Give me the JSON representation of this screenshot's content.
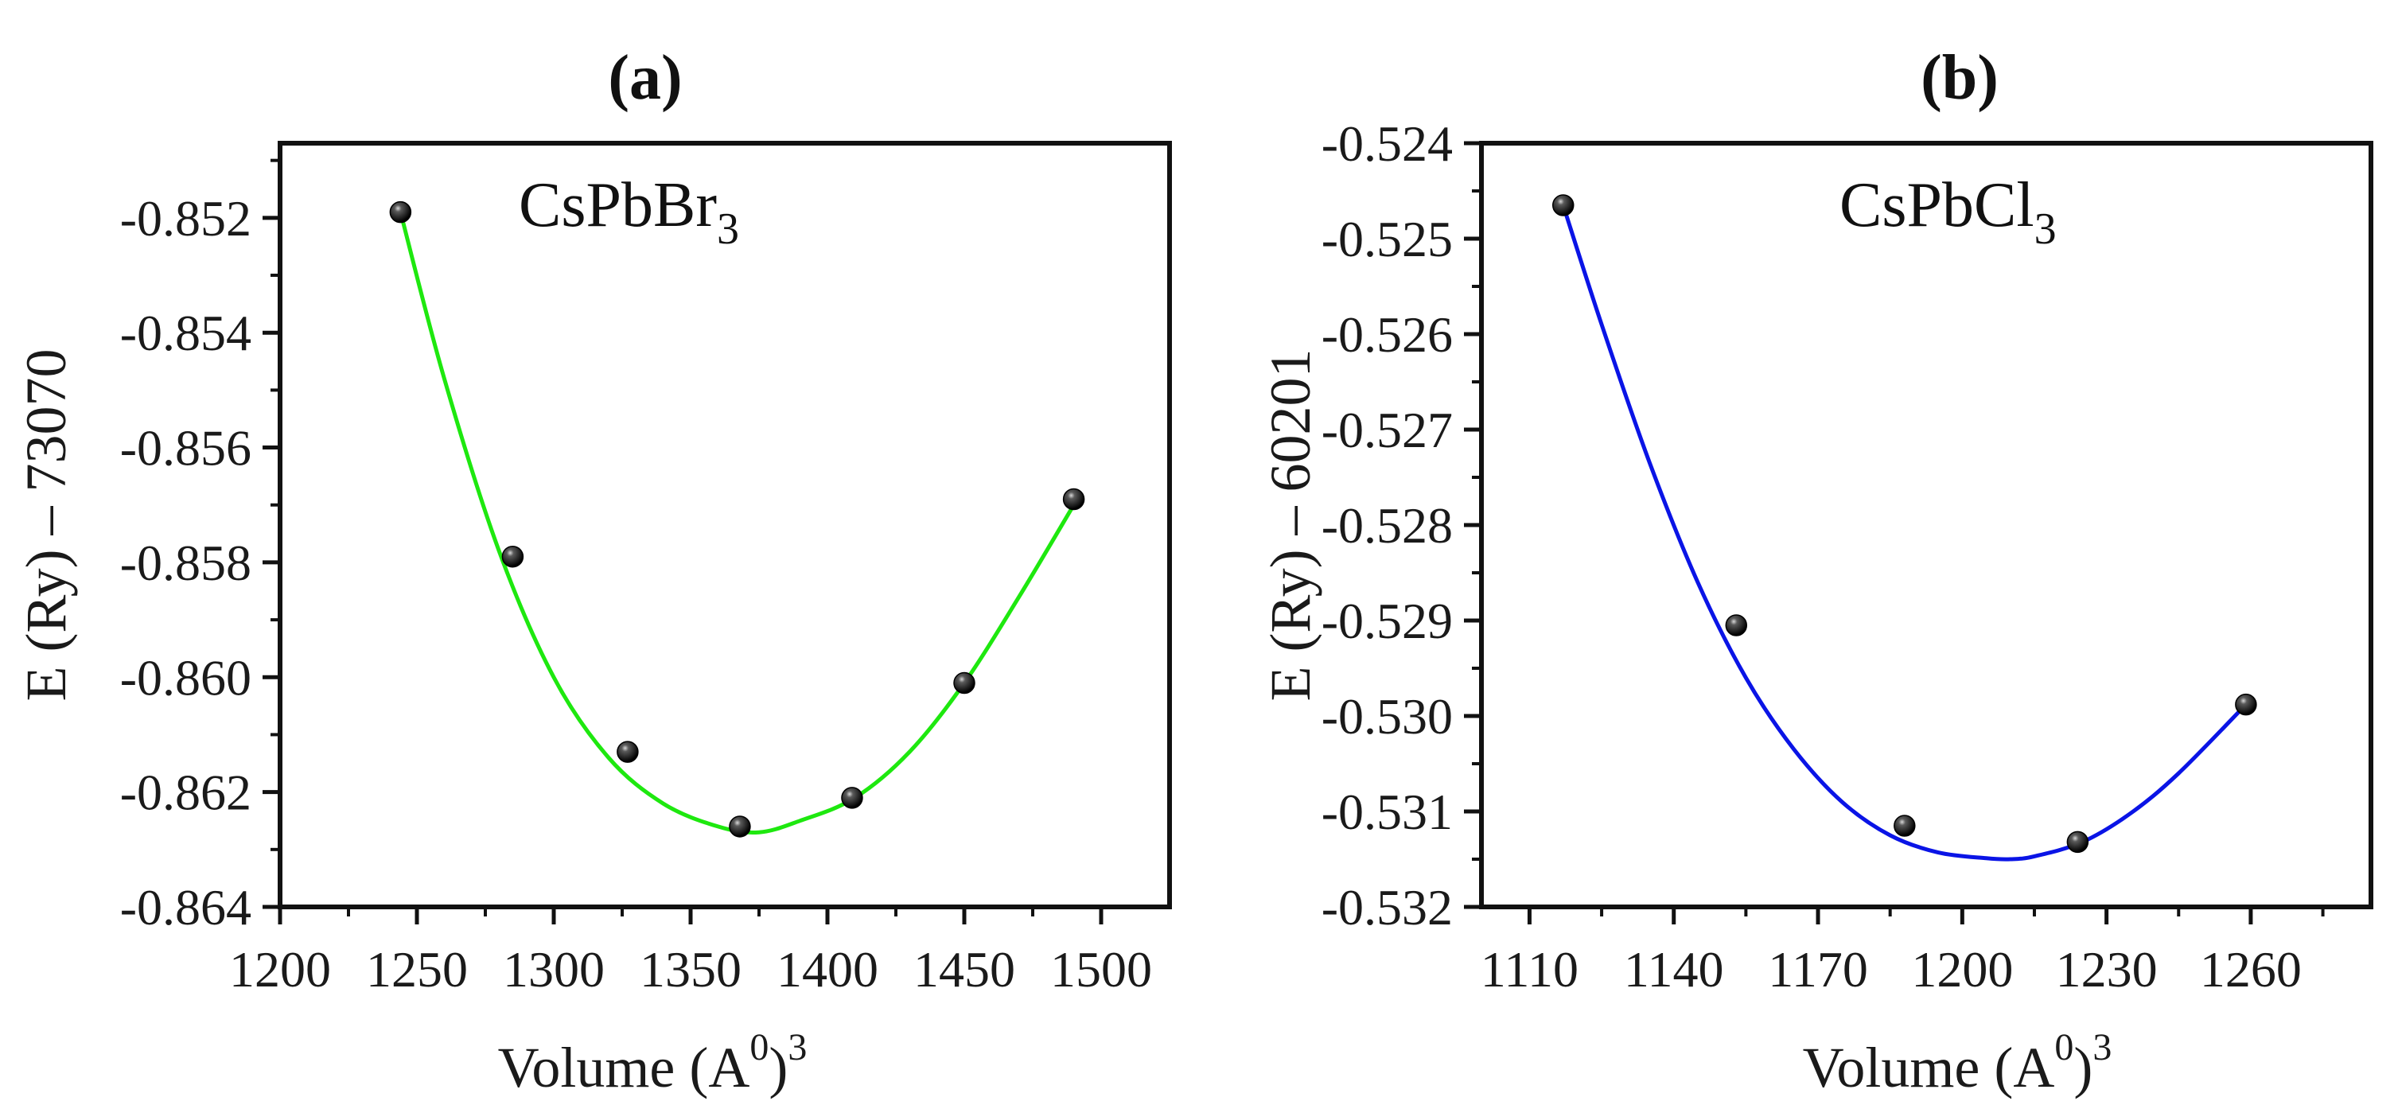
{
  "chart_data": [
    {
      "type": "scatter",
      "panel": "a",
      "title": "(a)",
      "annotation": {
        "base": "CsPbBr",
        "sub": "3"
      },
      "xlabel": {
        "text": "Volume (A",
        "sup1": "0",
        "close": ")",
        "sup2": "3"
      },
      "ylabel": "E (Ry) – 73070",
      "xlim": [
        1200,
        1525
      ],
      "ylim": [
        -0.864,
        -0.8507
      ],
      "xticks": [
        1200,
        1250,
        1300,
        1350,
        1400,
        1450,
        1500
      ],
      "yticks": [
        -0.852,
        -0.854,
        -0.856,
        -0.858,
        -0.86,
        -0.862,
        -0.864
      ],
      "ytick_labels": [
        "-0.852",
        "-0.854",
        "-0.856",
        "-0.858",
        "-0.860",
        "-0.862",
        "-0.864"
      ],
      "series": [
        {
          "name": "CsPbBr3 data",
          "marker": "black sphere",
          "x": [
            1244,
            1285,
            1327,
            1368,
            1409,
            1450,
            1490
          ],
          "y": [
            -0.8519,
            -0.8579,
            -0.8613,
            -0.8626,
            -0.8621,
            -0.8601,
            -0.8569
          ]
        },
        {
          "name": "CsPbBr3 fit",
          "color": "#1ee80f",
          "x": [
            1244,
            1260,
            1280,
            1300,
            1320,
            1340,
            1360,
            1375,
            1390,
            1410,
            1430,
            1450,
            1470,
            1490
          ],
          "y": [
            -0.8519,
            -0.8548,
            -0.8578,
            -0.86,
            -0.8614,
            -0.8622,
            -0.8626,
            -0.8627,
            -0.8625,
            -0.8621,
            -0.8613,
            -0.8601,
            -0.8586,
            -0.857
          ]
        }
      ]
    },
    {
      "type": "scatter",
      "panel": "b",
      "title": "(b)",
      "annotation": {
        "base": "CsPbCl",
        "sub": "3"
      },
      "xlabel": {
        "text": "Volume (A",
        "sup1": "0",
        "close": ")",
        "sup2": "3"
      },
      "ylabel": "E (Ry) – 60201",
      "xlim": [
        1100,
        1285
      ],
      "ylim": [
        -0.532,
        -0.524
      ],
      "xticks": [
        1110,
        1140,
        1170,
        1200,
        1230,
        1260
      ],
      "yticks": [
        -0.524,
        -0.525,
        -0.526,
        -0.527,
        -0.528,
        -0.529,
        -0.53,
        -0.531,
        -0.532
      ],
      "ytick_labels": [
        "-0.524",
        "-0.525",
        "-0.526",
        "-0.527",
        "-0.528",
        "-0.529",
        "-0.530",
        "-0.531",
        "-0.532"
      ],
      "series": [
        {
          "name": "CsPbCl3 data",
          "marker": "black sphere",
          "x": [
            1117,
            1153,
            1188,
            1224,
            1259
          ],
          "y": [
            -0.52465,
            -0.52905,
            -0.53115,
            -0.53132,
            -0.52988
          ]
        },
        {
          "name": "CsPbCl3 fit",
          "color": "#0a14e6",
          "x": [
            1117,
            1125,
            1135,
            1145,
            1155,
            1165,
            1175,
            1185,
            1195,
            1205,
            1210,
            1215,
            1225,
            1235,
            1245,
            1259
          ],
          "y": [
            -0.52465,
            -0.5259,
            -0.52735,
            -0.5286,
            -0.5296,
            -0.53035,
            -0.5309,
            -0.53125,
            -0.53143,
            -0.53149,
            -0.5315,
            -0.53147,
            -0.53132,
            -0.53102,
            -0.5306,
            -0.52988
          ]
        }
      ]
    }
  ]
}
